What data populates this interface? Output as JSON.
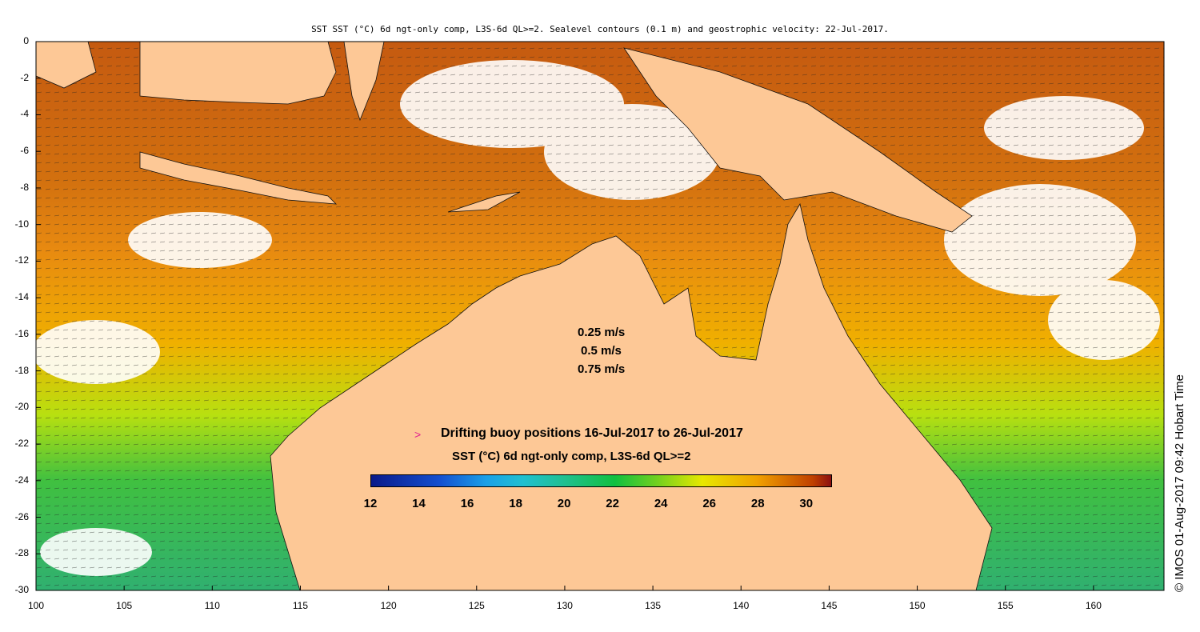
{
  "title": "SST SST (°C) 6d ngt-only comp, L3S-6d QL>=2. Sealevel contours (0.1 m) and geostrophic velocity: 22-Jul-2017.",
  "credit": "© IMOS 01-Aug-2017 09:42 Hobart Time",
  "axes": {
    "lon_range": [
      100,
      164
    ],
    "lat_range": [
      -30,
      0
    ],
    "lat_ticks": [
      "0",
      "-2",
      "-4",
      "-6",
      "-8",
      "-10",
      "-12",
      "-14",
      "-16",
      "-18",
      "-20",
      "-22",
      "-24",
      "-26",
      "-28",
      "-30"
    ],
    "lon_ticks": [
      "100",
      "105",
      "110",
      "115",
      "120",
      "125",
      "130",
      "135",
      "140",
      "145",
      "150",
      "155",
      "160"
    ]
  },
  "velocity_legend": [
    "0.25 m/s",
    "0.5 m/s",
    "0.75 m/s"
  ],
  "buoy_label": "Drifting buoy positions 16-Jul-2017 to 26-Jul-2017",
  "buoy_marker": ">",
  "colorbar": {
    "title": "SST (°C) 6d ngt-only comp, L3S-6d QL>=2",
    "range": [
      12,
      31
    ],
    "tick_labels": [
      "12",
      "14",
      "16",
      "18",
      "20",
      "22",
      "24",
      "26",
      "28",
      "30"
    ]
  },
  "colors": {
    "land": "#fdc896",
    "warm_sea": "#e88a10",
    "hot_sea": "#c55a10",
    "mid_sea": "#f0b000",
    "cool_sea": "#a8dc10",
    "cold_sea": "#30c040"
  }
}
